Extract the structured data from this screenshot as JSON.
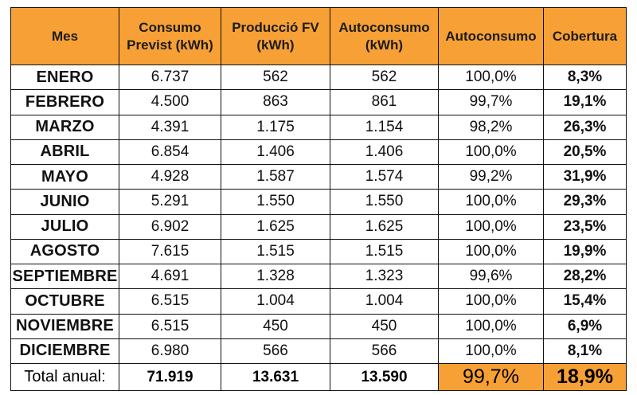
{
  "header": {
    "mes": "Mes",
    "consumo_line1": "Consumo",
    "consumo_line2": "Previst (kWh)",
    "produccio_line1": "Producció FV",
    "produccio_line2": "(kWh)",
    "autoconsumo_line1": "Autoconsumo",
    "autoconsumo_line2": "(kWh)",
    "autoconsumo_pct": "Autoconsumo",
    "cobertura": "Cobertura"
  },
  "rows": [
    {
      "mes": "ENERO",
      "consumo": "6.737",
      "produccio": "562",
      "autoconsumo": "562",
      "autoconsumo_pct": "100,0%",
      "cobertura": "8,3%"
    },
    {
      "mes": "FEBRERO",
      "consumo": "4.500",
      "produccio": "863",
      "autoconsumo": "861",
      "autoconsumo_pct": "99,7%",
      "cobertura": "19,1%"
    },
    {
      "mes": "MARZO",
      "consumo": "4.391",
      "produccio": "1.175",
      "autoconsumo": "1.154",
      "autoconsumo_pct": "98,2%",
      "cobertura": "26,3%"
    },
    {
      "mes": "ABRIL",
      "consumo": "6.854",
      "produccio": "1.406",
      "autoconsumo": "1.406",
      "autoconsumo_pct": "100,0%",
      "cobertura": "20,5%"
    },
    {
      "mes": "MAYO",
      "consumo": "4.928",
      "produccio": "1.587",
      "autoconsumo": "1.574",
      "autoconsumo_pct": "99,2%",
      "cobertura": "31,9%"
    },
    {
      "mes": "JUNIO",
      "consumo": "5.291",
      "produccio": "1.550",
      "autoconsumo": "1.550",
      "autoconsumo_pct": "100,0%",
      "cobertura": "29,3%"
    },
    {
      "mes": "JULIO",
      "consumo": "6.902",
      "produccio": "1.625",
      "autoconsumo": "1.625",
      "autoconsumo_pct": "100,0%",
      "cobertura": "23,5%"
    },
    {
      "mes": "AGOSTO",
      "consumo": "7.615",
      "produccio": "1.515",
      "autoconsumo": "1.515",
      "autoconsumo_pct": "100,0%",
      "cobertura": "19,9%"
    },
    {
      "mes": "SEPTIEMBRE",
      "consumo": "4.691",
      "produccio": "1.328",
      "autoconsumo": "1.323",
      "autoconsumo_pct": "99,6%",
      "cobertura": "28,2%"
    },
    {
      "mes": "OCTUBRE",
      "consumo": "6.515",
      "produccio": "1.004",
      "autoconsumo": "1.004",
      "autoconsumo_pct": "100,0%",
      "cobertura": "15,4%"
    },
    {
      "mes": "NOVIEMBRE",
      "consumo": "6.515",
      "produccio": "450",
      "autoconsumo": "450",
      "autoconsumo_pct": "100,0%",
      "cobertura": "6,9%"
    },
    {
      "mes": "DICIEMBRE",
      "consumo": "6.980",
      "produccio": "566",
      "autoconsumo": "566",
      "autoconsumo_pct": "100,0%",
      "cobertura": "8,1%"
    }
  ],
  "total": {
    "label": "Total anual:",
    "consumo": "71.919",
    "produccio": "13.631",
    "autoconsumo": "13.590",
    "autoconsumo_pct": "99,7%",
    "cobertura": "18,9%"
  },
  "colors": {
    "highlight": "#f7a035",
    "border": "#111111"
  }
}
